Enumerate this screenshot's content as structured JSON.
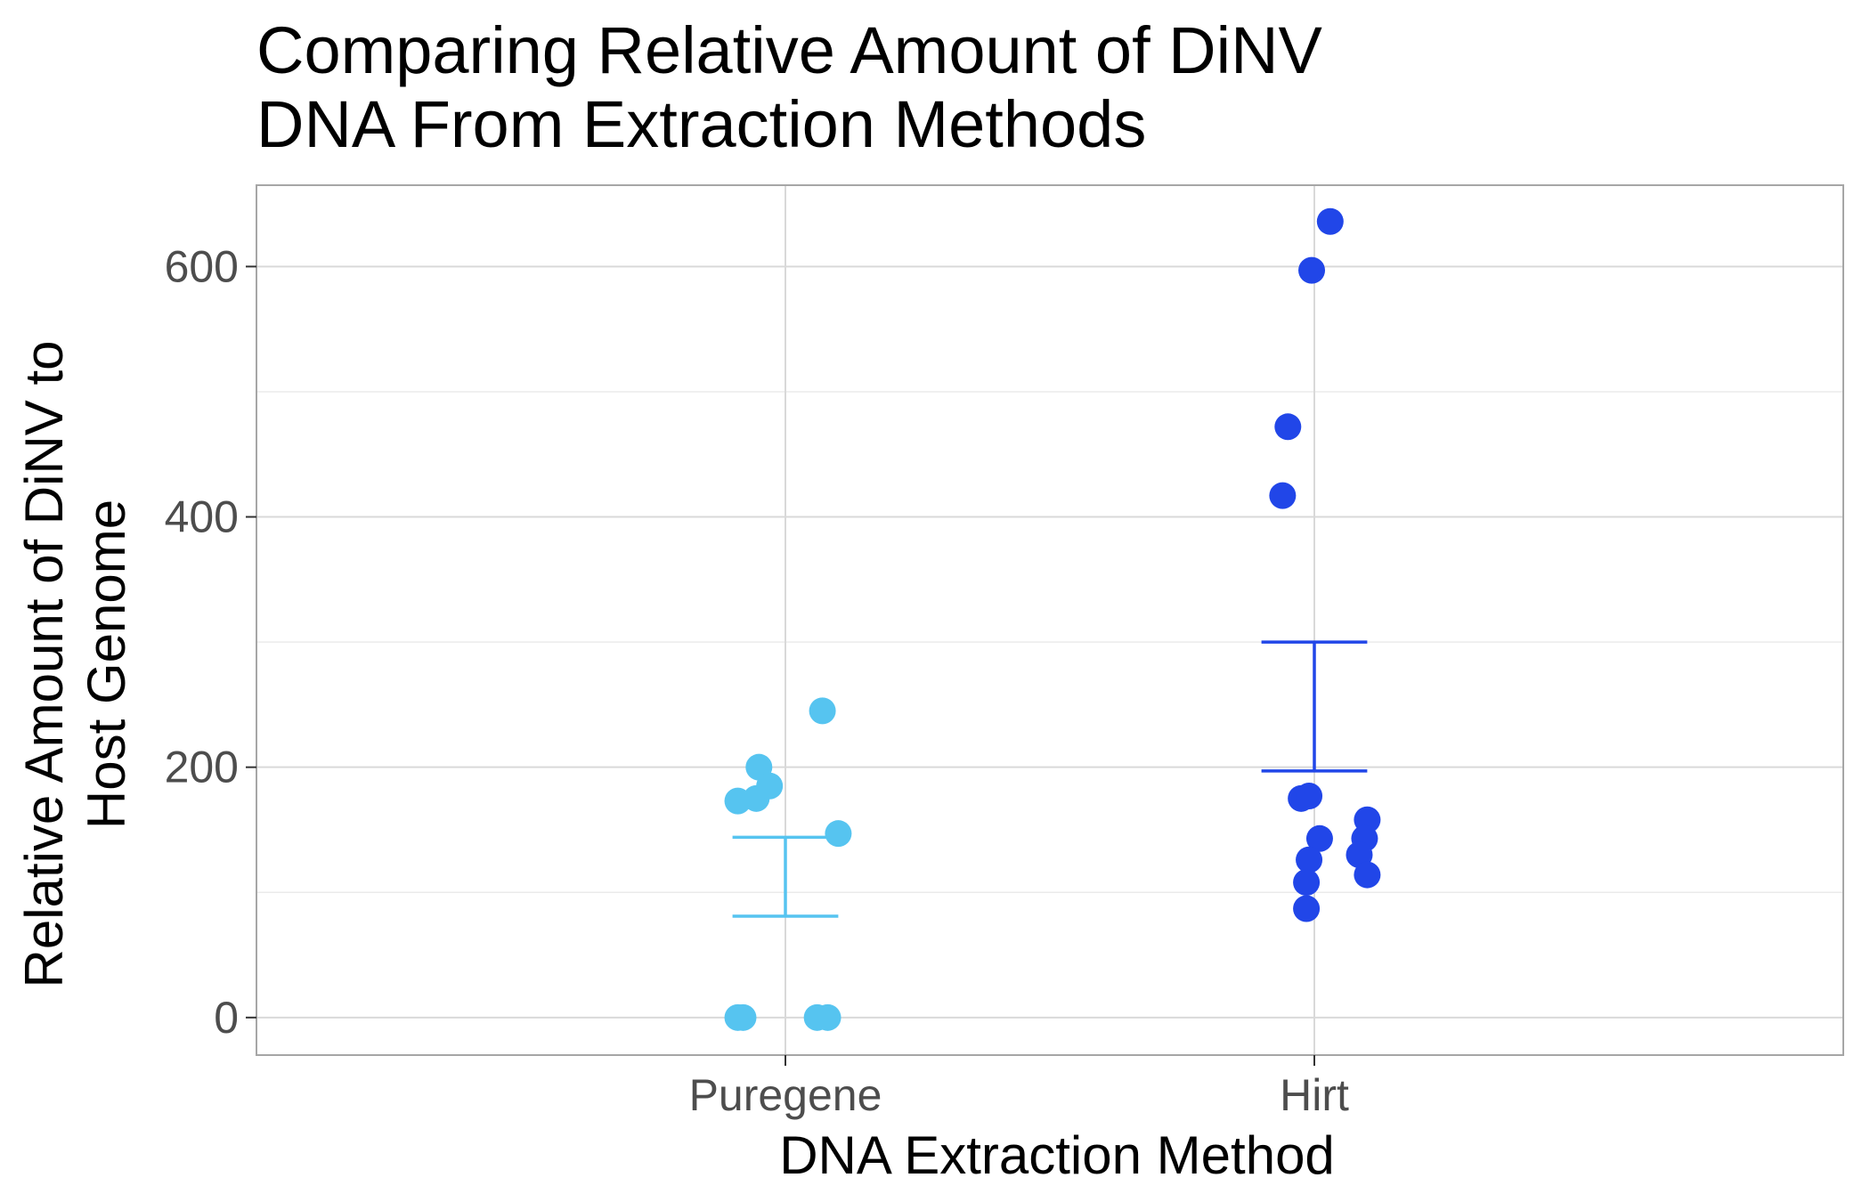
{
  "chart_data": {
    "type": "scatter",
    "title_lines": [
      "Comparing Relative Amount of DiNV",
      "DNA From Extraction Methods"
    ],
    "xlabel": "DNA Extraction Method",
    "ylabel_lines": [
      "Relative Amount of DiNV to",
      "Host Genome"
    ],
    "categories": [
      "Puregene",
      "Hirt"
    ],
    "ylim": [
      -30,
      665
    ],
    "yticks": [
      0,
      200,
      400,
      600
    ],
    "grid": true,
    "legend": "none",
    "series": [
      {
        "category": "Puregene",
        "color": "#56c4f0",
        "points": [
          {
            "jitter": -0.09,
            "y": 0
          },
          {
            "jitter": -0.08,
            "y": 0
          },
          {
            "jitter": 0.06,
            "y": 0
          },
          {
            "jitter": 0.08,
            "y": 0
          },
          {
            "jitter": -0.09,
            "y": 173
          },
          {
            "jitter": -0.055,
            "y": 175
          },
          {
            "jitter": -0.05,
            "y": 200
          },
          {
            "jitter": -0.03,
            "y": 185
          },
          {
            "jitter": 0.07,
            "y": 245
          },
          {
            "jitter": 0.1,
            "y": 147
          }
        ],
        "error_bar": {
          "low": 81,
          "high": 144
        }
      },
      {
        "category": "Hirt",
        "color": "#2146e8",
        "points": [
          {
            "jitter": 0.03,
            "y": 636
          },
          {
            "jitter": -0.005,
            "y": 597
          },
          {
            "jitter": -0.05,
            "y": 472
          },
          {
            "jitter": -0.06,
            "y": 417
          },
          {
            "jitter": -0.025,
            "y": 175
          },
          {
            "jitter": -0.01,
            "y": 177
          },
          {
            "jitter": 0.01,
            "y": 143
          },
          {
            "jitter": -0.01,
            "y": 126
          },
          {
            "jitter": -0.015,
            "y": 108
          },
          {
            "jitter": -0.015,
            "y": 87
          },
          {
            "jitter": 0.1,
            "y": 158
          },
          {
            "jitter": 0.095,
            "y": 143
          },
          {
            "jitter": 0.085,
            "y": 130
          },
          {
            "jitter": 0.1,
            "y": 114
          }
        ],
        "error_bar": {
          "low": 197,
          "high": 300
        }
      }
    ]
  }
}
